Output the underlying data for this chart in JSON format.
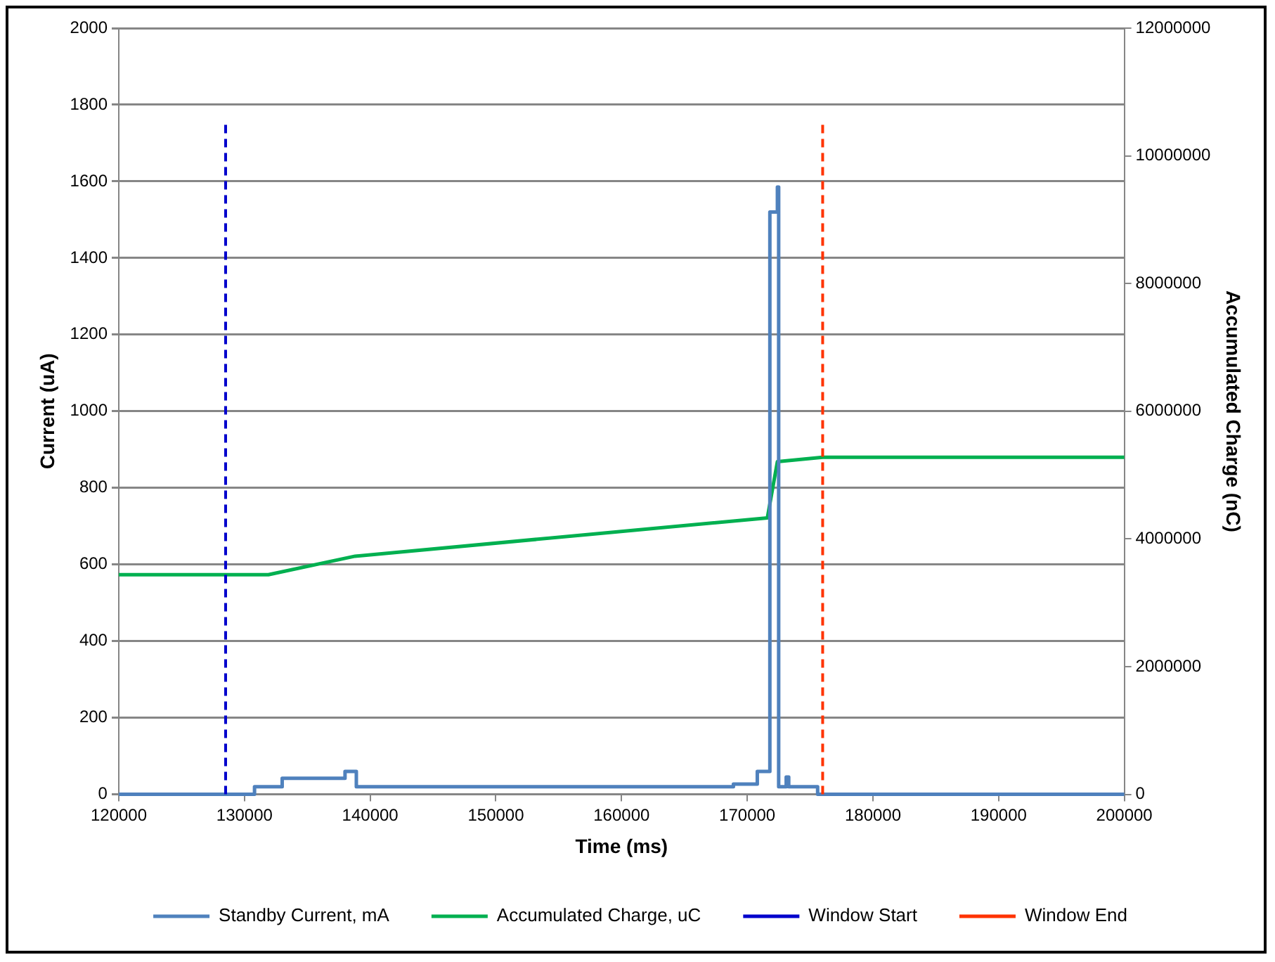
{
  "chart_data": {
    "type": "line",
    "xlabel": "Time (ms)",
    "ylabel": "Current (uA)",
    "y2label": "Accumulated Charge (nC)",
    "xlim": [
      120000,
      200000
    ],
    "xticks": [
      120000,
      130000,
      140000,
      150000,
      160000,
      170000,
      180000,
      190000,
      200000
    ],
    "ylim": [
      0,
      2000
    ],
    "yticks": [
      0,
      200,
      400,
      600,
      800,
      1000,
      1200,
      1400,
      1600,
      1800,
      2000
    ],
    "y2lim": [
      0,
      12000000
    ],
    "y2ticks": [
      0,
      2000000,
      4000000,
      6000000,
      8000000,
      10000000,
      12000000
    ],
    "grid": "y",
    "legend": "bottom",
    "marker": "none",
    "series": [
      {
        "name": "Standby Current, mA",
        "color": "#4f81bd",
        "type": "step",
        "x": [
          120000,
          130800,
          133000,
          138000,
          138900,
          168900,
          170800,
          171800,
          172400,
          172500,
          173100,
          173300,
          175600,
          200000
        ],
        "values": [
          0,
          20,
          42,
          60,
          20,
          27,
          60,
          1520,
          1585,
          20,
          45,
          20,
          0,
          0
        ]
      },
      {
        "name": "Accumulated Charge, uC",
        "color": "#00b050",
        "axis": "y2",
        "x": [
          120000,
          131900,
          138800,
          171600,
          172400,
          176000,
          200000
        ],
        "values": [
          3440000,
          3440000,
          3730000,
          4330000,
          5210000,
          5280000,
          5280000
        ]
      }
    ],
    "ref_lines": [
      {
        "axis": "x",
        "value": 128500,
        "label": "Window Start",
        "color": "#0000cc",
        "line_style": "dashed"
      },
      {
        "axis": "x",
        "value": 176000,
        "label": "Window End",
        "color": "#ff3300",
        "line_style": "dashed"
      }
    ]
  }
}
